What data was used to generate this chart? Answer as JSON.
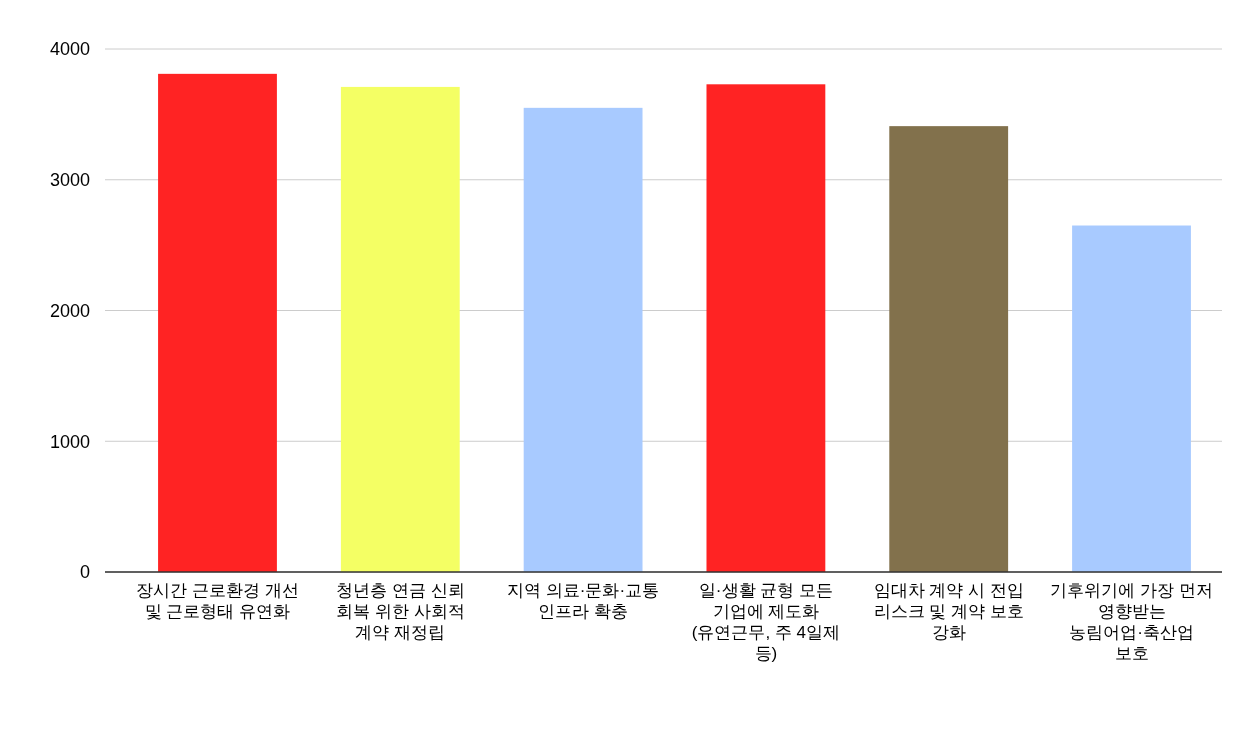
{
  "chart_data": {
    "type": "bar",
    "categories": [
      "장시간 근로환경 개선 및 근로형태 유연화",
      "청년층 연금 신뢰 회복 위한 사회적 계약 재정립",
      "지역 의료·문화·교통 인프라 확충",
      "일·생활 균형 모든 기업에 제도화 (유연근무, 주 4일제 등)",
      "임대차 계약 시 전입 리스크 및 계약 보호 강화",
      "기후위기에 가장 먼저 영향받는 농림어업·축산업 보호"
    ],
    "values": [
      3810,
      3710,
      3550,
      3730,
      3410,
      2650
    ],
    "colors": [
      "#ff2323",
      "#f4ff64",
      "#a8caff",
      "#ff2323",
      "#82714c",
      "#a8caff"
    ],
    "ylim": [
      0,
      4000
    ],
    "yticks": [
      0,
      1000,
      2000,
      3000,
      4000
    ],
    "grid": "y"
  }
}
